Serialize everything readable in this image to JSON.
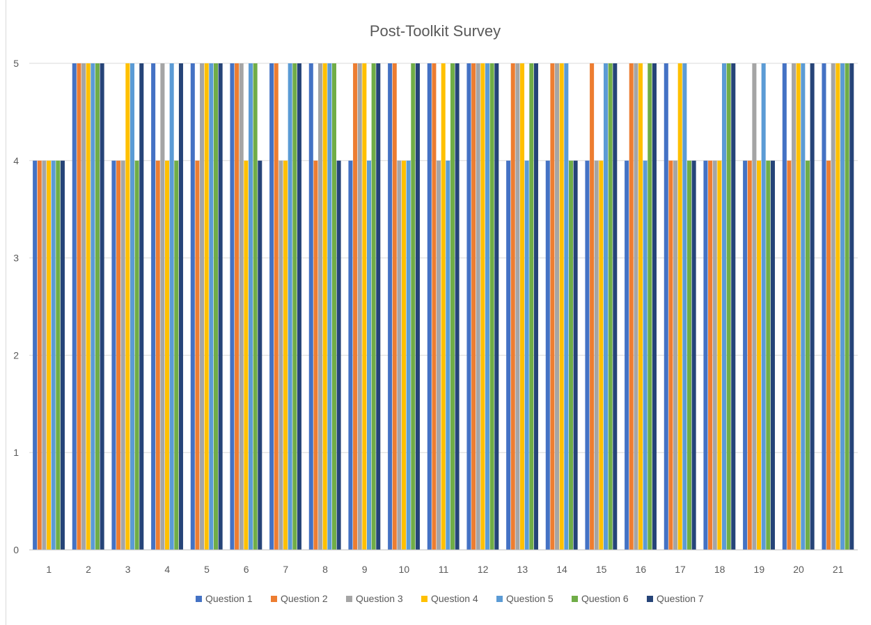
{
  "chart_data": {
    "type": "bar",
    "title": "Post-Toolkit Survey",
    "xlabel": "",
    "ylabel": "",
    "ylim": [
      0,
      5
    ],
    "yticks": [
      0,
      1,
      2,
      3,
      4,
      5
    ],
    "grid": true,
    "legend": "bottom",
    "categories": [
      "1",
      "2",
      "3",
      "4",
      "5",
      "6",
      "7",
      "8",
      "9",
      "10",
      "11",
      "12",
      "13",
      "14",
      "15",
      "16",
      "17",
      "18",
      "19",
      "20",
      "21"
    ],
    "series": [
      {
        "name": "Question 1",
        "color": "#4472C4",
        "values": [
          4,
          5,
          4,
          5,
          5,
          5,
          5,
          5,
          4,
          5,
          5,
          5,
          4,
          4,
          4,
          4,
          5,
          4,
          4,
          5,
          5
        ]
      },
      {
        "name": "Question 2",
        "color": "#ED7D31",
        "values": [
          4,
          5,
          4,
          4,
          4,
          5,
          5,
          4,
          5,
          5,
          5,
          5,
          5,
          5,
          5,
          5,
          4,
          4,
          4,
          4,
          4
        ]
      },
      {
        "name": "Question 3",
        "color": "#A5A5A5",
        "values": [
          4,
          5,
          4,
          5,
          5,
          5,
          4,
          5,
          5,
          4,
          4,
          5,
          5,
          5,
          4,
          5,
          4,
          4,
          5,
          5,
          5
        ]
      },
      {
        "name": "Question 4",
        "color": "#FFC000",
        "values": [
          4,
          5,
          5,
          4,
          5,
          4,
          4,
          5,
          5,
          4,
          5,
          5,
          5,
          5,
          4,
          5,
          5,
          4,
          4,
          5,
          5
        ]
      },
      {
        "name": "Question 5",
        "color": "#5B9BD5",
        "values": [
          4,
          5,
          5,
          5,
          5,
          5,
          5,
          5,
          4,
          4,
          4,
          5,
          4,
          5,
          5,
          4,
          5,
          5,
          5,
          5,
          5
        ]
      },
      {
        "name": "Question 6",
        "color": "#70AD47",
        "values": [
          4,
          5,
          4,
          4,
          5,
          5,
          5,
          5,
          5,
          5,
          5,
          5,
          5,
          4,
          5,
          5,
          4,
          5,
          4,
          4,
          5
        ]
      },
      {
        "name": "Question 7",
        "color": "#264478",
        "values": [
          4,
          5,
          5,
          5,
          5,
          4,
          5,
          4,
          5,
          5,
          5,
          5,
          5,
          4,
          5,
          5,
          4,
          5,
          4,
          5,
          5
        ]
      }
    ]
  }
}
